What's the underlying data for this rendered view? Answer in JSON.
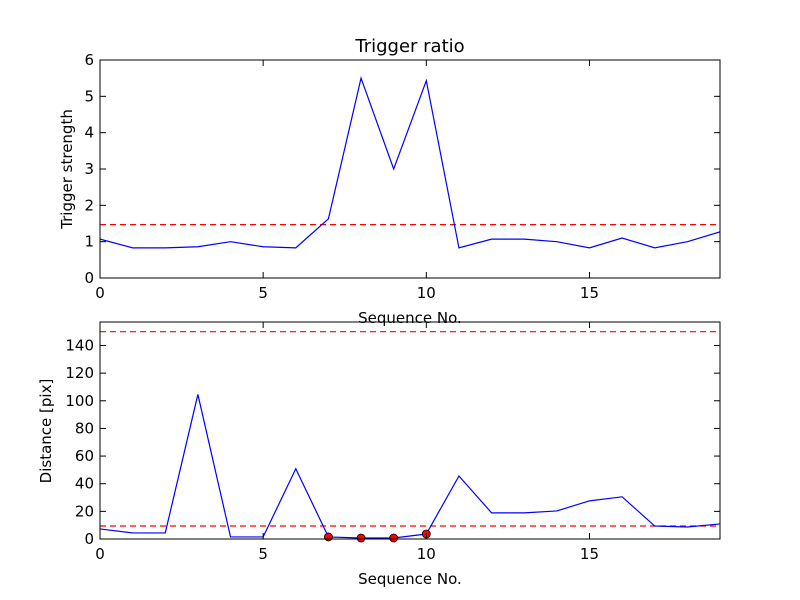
{
  "chart_data": [
    {
      "type": "line",
      "title": "Trigger ratio",
      "xlabel": "Sequence No.",
      "ylabel": "Trigger strength",
      "xlim": [
        0,
        19
      ],
      "ylim": [
        0,
        6
      ],
      "xticks": [
        "0",
        "5",
        "10",
        "15"
      ],
      "xtick_values": [
        0,
        5,
        10,
        15
      ],
      "yticks": [
        "0",
        "1",
        "2",
        "3",
        "4",
        "5",
        "6"
      ],
      "ytick_values": [
        0,
        1,
        2,
        3,
        4,
        5,
        6
      ],
      "grid": false,
      "series": [
        {
          "color": "#0000ff",
          "x": [
            0,
            1,
            2,
            3,
            4,
            5,
            6,
            7,
            8,
            9,
            10,
            11,
            12,
            13,
            14,
            15,
            16,
            17,
            18,
            19
          ],
          "values": [
            1.07,
            0.83,
            0.83,
            0.86,
            1.0,
            0.86,
            0.83,
            1.63,
            5.5,
            3.0,
            5.43,
            0.83,
            1.07,
            1.07,
            1.0,
            0.83,
            1.1,
            0.83,
            1.0,
            1.27
          ]
        }
      ],
      "hlines": [
        {
          "y": 1.47,
          "color": "#ff0000",
          "style": "dashed"
        }
      ]
    },
    {
      "type": "line",
      "title": "",
      "xlabel": "Sequence No.",
      "ylabel": "Distance [pix]",
      "xlim": [
        0,
        19
      ],
      "ylim": [
        0,
        157
      ],
      "xticks": [
        "0",
        "5",
        "10",
        "15"
      ],
      "xtick_values": [
        0,
        5,
        10,
        15
      ],
      "yticks": [
        "0",
        "20",
        "40",
        "60",
        "80",
        "100",
        "120",
        "140"
      ],
      "ytick_values": [
        0,
        20,
        40,
        60,
        80,
        100,
        120,
        140
      ],
      "grid": false,
      "series": [
        {
          "color": "#0000ff",
          "x": [
            0,
            1,
            2,
            3,
            4,
            5,
            6,
            7,
            8,
            9,
            10,
            11,
            12,
            13,
            14,
            15,
            16,
            17,
            18,
            19
          ],
          "values": [
            7.3,
            4.4,
            4.4,
            104.6,
            1.5,
            1.5,
            50.8,
            1.5,
            0.7,
            0.7,
            3.6,
            45.6,
            18.9,
            18.9,
            20.3,
            27.6,
            30.5,
            9.4,
            8.7,
            10.9
          ]
        }
      ],
      "markers": {
        "color": "#ff0000",
        "x": [
          7,
          8,
          9,
          10
        ],
        "values": [
          1.5,
          0.7,
          0.7,
          3.6
        ]
      },
      "hlines": [
        {
          "y": 150,
          "color": "#ff0000",
          "style": "dashed"
        },
        {
          "y": 9.4,
          "color": "#ff0000",
          "style": "dashed"
        }
      ]
    }
  ]
}
